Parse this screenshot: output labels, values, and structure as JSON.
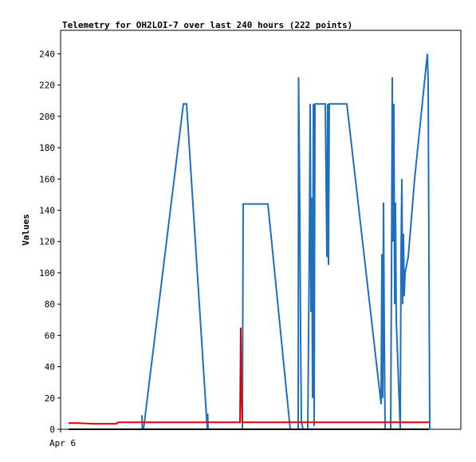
{
  "chart_data": {
    "type": "line",
    "title": "Telemetry for OH2LOI-7 over last 240 hours (222 points)",
    "xlabel": "",
    "ylabel": "Values",
    "x_tick_labels": [
      "Apr 6"
    ],
    "ylim": [
      0,
      255
    ],
    "yticks": [
      0,
      20,
      40,
      60,
      80,
      100,
      120,
      140,
      160,
      180,
      200,
      220,
      240
    ],
    "grid": false,
    "legend": "none",
    "colors": {
      "blue": "#1f6fbf",
      "red": "#e00000",
      "black": "#000000",
      "frame": "#000000"
    },
    "series": [
      {
        "color": "#1f6fbf",
        "x": [
          178,
          178.5,
          180,
          230,
          234,
          260,
          260.5,
          261,
          262,
          304,
          305,
          336,
          364,
          374,
          374.5,
          375,
          376,
          377,
          378,
          380,
          386,
          388,
          389,
          390,
          391,
          392,
          393,
          394,
          395,
          396,
          397,
          398,
          408,
          410,
          411,
          412,
          413,
          414,
          420,
          435,
          478,
          479,
          480,
          481,
          482,
          483,
          490,
          491,
          492,
          493,
          494,
          495,
          496,
          497,
          502,
          503,
          504,
          505,
          506,
          507,
          508,
          512,
          520,
          536,
          537,
          538,
          539
        ],
        "y": [
          9,
          0,
          0,
          208,
          208,
          0,
          10,
          0,
          0,
          0,
          144,
          144,
          0,
          0,
          225,
          198,
          140,
          60,
          5,
          0,
          0,
          118,
          208,
          75,
          148,
          20,
          208,
          2,
          208,
          208,
          208,
          208,
          208,
          110,
          208,
          105,
          208,
          208,
          208,
          208,
          16,
          112,
          20,
          145,
          60,
          0,
          0,
          98,
          225,
          120,
          208,
          80,
          145,
          70,
          0,
          112,
          160,
          80,
          125,
          85,
          100,
          110,
          160,
          240,
          222,
          105,
          0
        ]
      },
      {
        "color": "#e00000",
        "x": [
          86,
          98,
          118,
          146,
          148,
          300,
          301,
          302,
          303,
          304,
          538
        ],
        "y": [
          4,
          4,
          3.5,
          3.5,
          4.5,
          4.5,
          4.5,
          65,
          20,
          4.5,
          4.5
        ]
      },
      {
        "color": "#000000",
        "x": [
          86,
          538
        ],
        "y": [
          0,
          0
        ]
      }
    ],
    "x_domain": [
      76,
      578
    ]
  }
}
